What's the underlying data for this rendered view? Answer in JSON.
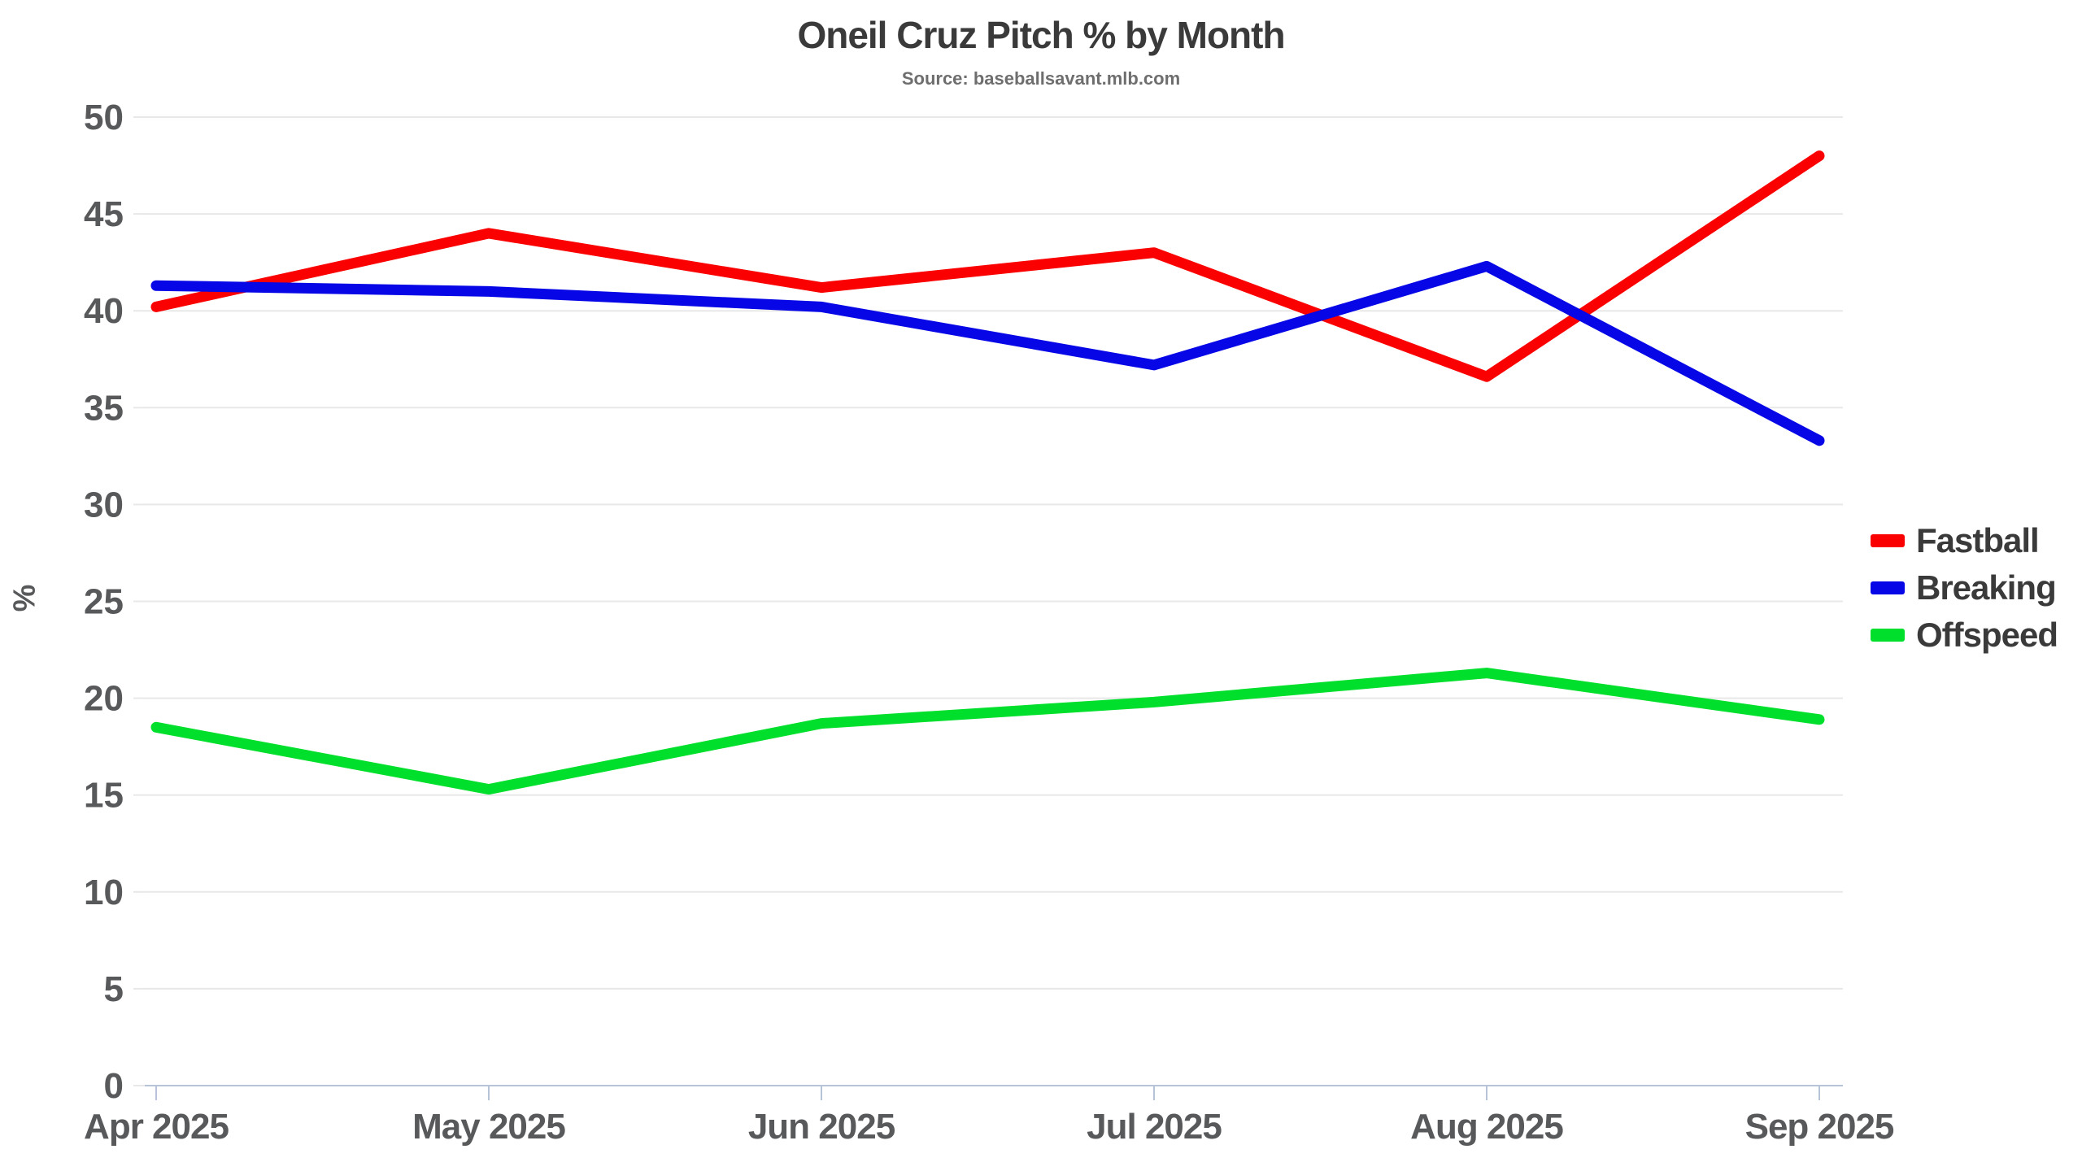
{
  "title": "Oneil Cruz Pitch % by Month",
  "subtitle": "Source: baseballsavant.mlb.com",
  "chart_data": {
    "type": "line",
    "categories": [
      "Apr 2025",
      "May 2025",
      "Jun 2025",
      "Jul 2025",
      "Aug 2025",
      "Sep 2025"
    ],
    "series": [
      {
        "name": "Fastball",
        "color": "#fa0000",
        "values": [
          40.2,
          44.0,
          41.2,
          43.0,
          36.6,
          48.0
        ]
      },
      {
        "name": "Breaking",
        "color": "#0606e6",
        "values": [
          41.3,
          41.0,
          40.2,
          37.2,
          42.3,
          33.3
        ]
      },
      {
        "name": "Offspeed",
        "color": "#00df2b",
        "values": [
          18.5,
          15.3,
          18.7,
          19.8,
          21.3,
          18.9
        ]
      }
    ],
    "xlabel": "",
    "ylabel": "%",
    "ylim": [
      0,
      50
    ],
    "y_ticks": [
      0,
      5,
      10,
      15,
      20,
      25,
      30,
      35,
      40,
      45,
      50
    ],
    "grid": true,
    "legend_position": "right"
  },
  "colors": {
    "grid": "#e8e8e8",
    "axis": "#b7c3d6",
    "tick_label": "#58595b",
    "title": "#3a3a3a",
    "subtitle": "#6e6e6e",
    "legend_text": "#3a3a3a"
  }
}
